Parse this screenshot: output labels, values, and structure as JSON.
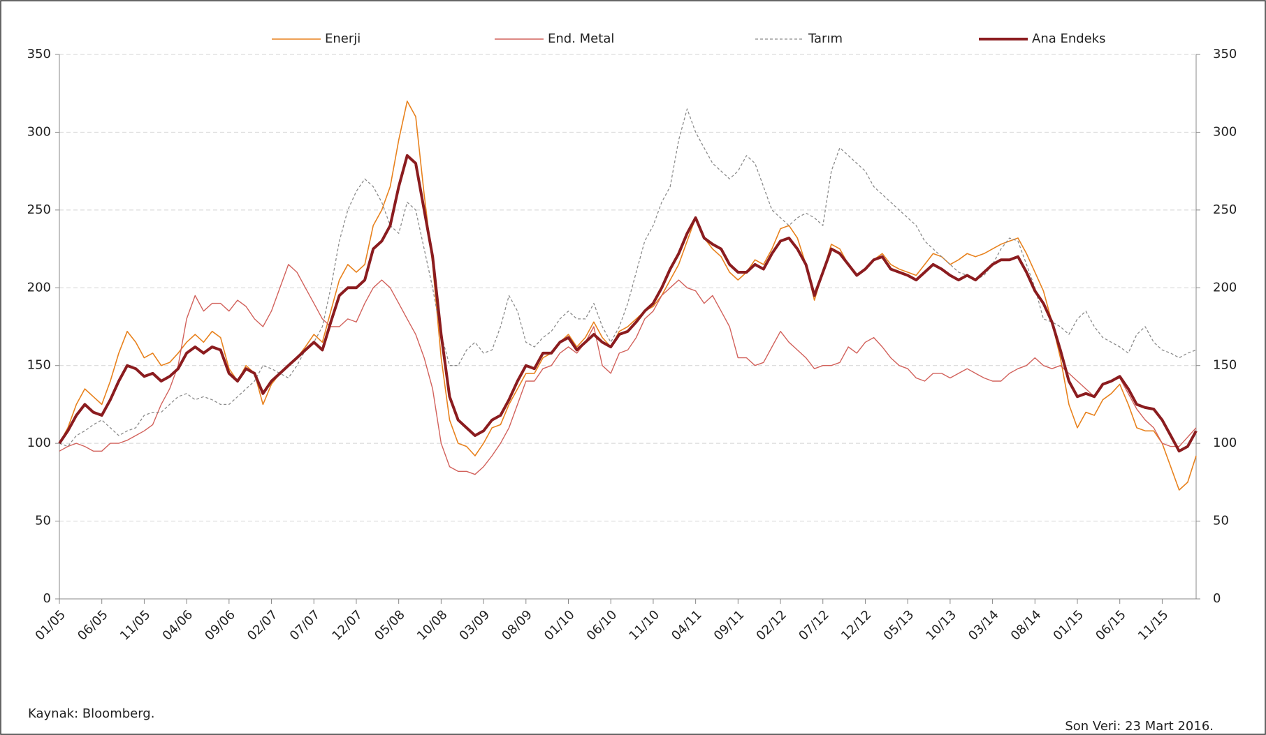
{
  "chart_data": {
    "type": "line",
    "categories": [
      "01/05",
      null,
      null,
      null,
      null,
      "06/05",
      null,
      null,
      null,
      null,
      "11/05",
      null,
      null,
      null,
      null,
      "04/06",
      null,
      null,
      null,
      null,
      "09/06",
      null,
      null,
      null,
      null,
      "02/07",
      null,
      null,
      null,
      null,
      "07/07",
      null,
      null,
      null,
      null,
      "12/07",
      null,
      null,
      null,
      null,
      "05/08",
      null,
      null,
      null,
      null,
      "10/08",
      null,
      null,
      null,
      null,
      "03/09",
      null,
      null,
      null,
      null,
      "08/09",
      null,
      null,
      null,
      null,
      "01/10",
      null,
      null,
      null,
      null,
      "06/10",
      null,
      null,
      null,
      null,
      "11/10",
      null,
      null,
      null,
      null,
      "04/11",
      null,
      null,
      null,
      null,
      "09/11",
      null,
      null,
      null,
      null,
      "02/12",
      null,
      null,
      null,
      null,
      "07/12",
      null,
      null,
      null,
      null,
      "12/12",
      null,
      null,
      null,
      null,
      "05/13",
      null,
      null,
      null,
      null,
      "10/13",
      null,
      null,
      null,
      null,
      "03/14",
      null,
      null,
      null,
      null,
      "08/14",
      null,
      null,
      null,
      null,
      "01/15",
      null,
      null,
      null,
      null,
      "06/15",
      null,
      null,
      null,
      null,
      "11/15",
      null,
      null,
      null,
      null
    ],
    "series": [
      {
        "name": "Enerji",
        "color": "#e8821e",
        "style": "solid",
        "width": 1.6,
        "values": [
          100,
          110,
          125,
          135,
          130,
          125,
          140,
          158,
          172,
          165,
          155,
          158,
          150,
          152,
          158,
          165,
          170,
          165,
          172,
          168,
          148,
          140,
          150,
          145,
          125,
          138,
          145,
          150,
          155,
          162,
          170,
          165,
          185,
          205,
          215,
          210,
          215,
          240,
          250,
          265,
          295,
          320,
          310,
          260,
          215,
          155,
          115,
          100,
          98,
          92,
          100,
          110,
          112,
          125,
          135,
          145,
          145,
          155,
          158,
          165,
          170,
          162,
          168,
          178,
          168,
          162,
          172,
          175,
          180,
          185,
          188,
          195,
          205,
          215,
          230,
          245,
          232,
          225,
          220,
          210,
          205,
          210,
          218,
          215,
          225,
          238,
          240,
          232,
          215,
          192,
          210,
          228,
          225,
          215,
          208,
          212,
          218,
          222,
          215,
          212,
          210,
          208,
          215,
          222,
          220,
          215,
          218,
          222,
          220,
          222,
          225,
          228,
          230,
          232,
          222,
          210,
          198,
          178,
          155,
          125,
          110,
          120,
          118,
          128,
          132,
          138,
          125,
          110,
          108,
          108,
          100,
          85,
          70,
          75,
          92
        ]
      },
      {
        "name": "End. Metal",
        "color": "#d2625c",
        "style": "solid",
        "width": 1.4,
        "values": [
          95,
          98,
          100,
          98,
          95,
          95,
          100,
          100,
          102,
          105,
          108,
          112,
          125,
          135,
          150,
          180,
          195,
          185,
          190,
          190,
          185,
          192,
          188,
          180,
          175,
          185,
          200,
          215,
          210,
          200,
          190,
          180,
          175,
          175,
          180,
          178,
          190,
          200,
          205,
          200,
          190,
          180,
          170,
          155,
          135,
          100,
          85,
          82,
          82,
          80,
          85,
          92,
          100,
          110,
          125,
          140,
          140,
          148,
          150,
          158,
          162,
          158,
          165,
          175,
          150,
          145,
          158,
          160,
          168,
          180,
          185,
          195,
          200,
          205,
          200,
          198,
          190,
          195,
          185,
          175,
          155,
          155,
          150,
          152,
          162,
          172,
          165,
          160,
          155,
          148,
          150,
          150,
          152,
          162,
          158,
          165,
          168,
          162,
          155,
          150,
          148,
          142,
          140,
          145,
          145,
          142,
          145,
          148,
          145,
          142,
          140,
          140,
          145,
          148,
          150,
          155,
          150,
          148,
          150,
          145,
          140,
          135,
          130,
          138,
          140,
          142,
          132,
          122,
          115,
          110,
          100,
          98,
          98,
          104,
          110
        ]
      },
      {
        "name": "Tarım",
        "color": "#8c8c8c",
        "style": "dashed",
        "width": 1.3,
        "values": [
          100,
          98,
          105,
          108,
          112,
          115,
          110,
          105,
          108,
          110,
          118,
          120,
          120,
          125,
          130,
          132,
          128,
          130,
          128,
          125,
          125,
          130,
          135,
          140,
          150,
          148,
          145,
          142,
          150,
          160,
          165,
          175,
          200,
          230,
          250,
          262,
          270,
          265,
          255,
          240,
          235,
          255,
          250,
          225,
          200,
          170,
          150,
          150,
          160,
          165,
          158,
          160,
          175,
          195,
          185,
          165,
          162,
          168,
          172,
          180,
          185,
          180,
          180,
          190,
          175,
          165,
          175,
          190,
          210,
          230,
          240,
          255,
          265,
          295,
          315,
          300,
          290,
          280,
          275,
          270,
          275,
          285,
          280,
          265,
          250,
          245,
          240,
          245,
          248,
          245,
          240,
          275,
          290,
          285,
          280,
          275,
          265,
          260,
          255,
          250,
          245,
          240,
          230,
          225,
          220,
          215,
          210,
          208,
          205,
          208,
          215,
          225,
          232,
          230,
          215,
          200,
          180,
          178,
          175,
          170,
          180,
          185,
          175,
          168,
          165,
          162,
          158,
          170,
          175,
          165,
          160,
          158,
          155,
          158,
          160
        ]
      },
      {
        "name": "Ana Endeks",
        "color": "#8b1c1f",
        "style": "solid",
        "width": 4,
        "values": [
          100,
          108,
          118,
          125,
          120,
          118,
          128,
          140,
          150,
          148,
          143,
          145,
          140,
          143,
          148,
          158,
          162,
          158,
          162,
          160,
          145,
          140,
          148,
          145,
          132,
          140,
          145,
          150,
          155,
          160,
          165,
          160,
          178,
          195,
          200,
          200,
          205,
          225,
          230,
          240,
          265,
          285,
          280,
          250,
          220,
          170,
          130,
          115,
          110,
          105,
          108,
          115,
          118,
          128,
          140,
          150,
          148,
          158,
          158,
          165,
          168,
          160,
          165,
          170,
          165,
          162,
          170,
          172,
          178,
          185,
          190,
          200,
          212,
          222,
          235,
          245,
          232,
          228,
          225,
          215,
          210,
          210,
          215,
          212,
          222,
          230,
          232,
          225,
          215,
          195,
          210,
          225,
          222,
          215,
          208,
          212,
          218,
          220,
          212,
          210,
          208,
          205,
          210,
          215,
          212,
          208,
          205,
          208,
          205,
          210,
          215,
          218,
          218,
          220,
          210,
          198,
          190,
          178,
          160,
          140,
          130,
          132,
          130,
          138,
          140,
          143,
          135,
          125,
          123,
          122,
          115,
          105,
          95,
          98,
          108
        ]
      }
    ],
    "ylim": [
      0,
      350
    ],
    "yticks": [
      0,
      50,
      100,
      150,
      200,
      250,
      300,
      350
    ],
    "y2lim": [
      0,
      350
    ],
    "y2ticks": [
      0,
      50,
      100,
      150,
      200,
      250,
      300,
      350
    ],
    "grid": true,
    "legend": "top",
    "source": "Kaynak: Bloomberg.",
    "note": "Son Veri:  23 Mart 2016."
  }
}
